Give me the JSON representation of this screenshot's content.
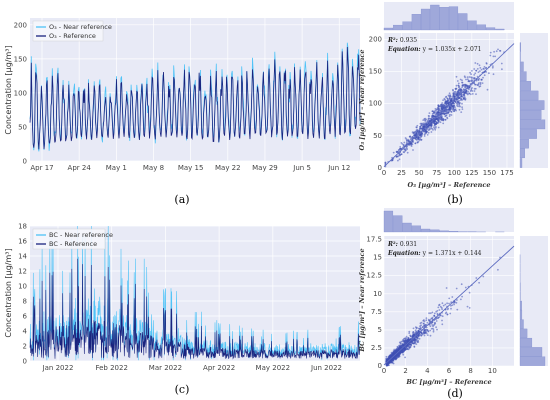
{
  "chart_data": [
    {
      "panel": "(a)",
      "type": "line",
      "ylabel": "Concentration [µg/m³]",
      "ylim": [
        0,
        210
      ],
      "yticks": [
        0,
        50,
        100,
        150,
        200
      ],
      "xticks": [
        "Apr 17",
        "Apr 24",
        "May 1",
        "May 8",
        "May 15",
        "May 22",
        "May 29",
        "Jun 5",
        "Jun 12"
      ],
      "series": [
        {
          "name": "O₃ - Near reference",
          "color": "#4fc3f7"
        },
        {
          "name": "O₃ - Reference",
          "color": "#1a237e"
        }
      ],
      "envelope_min": [
        5,
        25,
        30,
        28,
        30,
        25,
        30,
        30,
        28,
        30
      ],
      "envelope_max": [
        140,
        115,
        120,
        120,
        140,
        130,
        140,
        150,
        140,
        200
      ],
      "legend": "top-left"
    },
    {
      "panel": "(b)",
      "type": "scatter",
      "xlabel": "O₃ [µg/m³] – Reference",
      "ylabel": "O₃ [µg/m³] – Near reference",
      "xlim": [
        0,
        185
      ],
      "ylim": [
        0,
        210
      ],
      "xticks": [
        0,
        25,
        50,
        75,
        100,
        125,
        150,
        175
      ],
      "yticks": [
        0,
        50,
        100,
        150,
        200
      ],
      "r2_label": "R²:",
      "r2": "0.935",
      "equation_label": "Equation:",
      "equation": "y = 1.035x + 2.071",
      "slope": 1.035,
      "intercept": 2.071,
      "color": "#3f51b5"
    },
    {
      "panel": "(c)",
      "type": "line",
      "ylabel": "Concentration [µg/m³]",
      "ylim": [
        0,
        18
      ],
      "yticks": [
        0,
        2,
        4,
        6,
        8,
        10,
        12,
        14,
        16,
        18
      ],
      "xticks": [
        "Jan 2022",
        "Feb 2022",
        "Mar 2022",
        "Apr 2022",
        "May 2022",
        "Jun 2022"
      ],
      "series": [
        {
          "name": "BC - Near reference",
          "color": "#4fc3f7"
        },
        {
          "name": "BC - Reference",
          "color": "#1a237e"
        }
      ],
      "envelope_max": [
        10,
        13,
        16,
        12,
        8,
        5,
        4,
        3.5,
        3,
        3.5,
        4
      ],
      "legend": "top-left"
    },
    {
      "panel": "(d)",
      "type": "scatter",
      "xlabel": "BC [µg/m³] – Reference",
      "ylabel": "BC [µg/m³] – Near reference",
      "xlim": [
        0,
        12
      ],
      "ylim": [
        0,
        18
      ],
      "xticks": [
        0,
        2,
        4,
        6,
        8,
        10
      ],
      "yticks": [
        0,
        2.5,
        5,
        7.5,
        10,
        12.5,
        15,
        17.5
      ],
      "r2_label": "R²:",
      "r2": "0.931",
      "equation_label": "Equation:",
      "equation": "y = 1.371x + 0.144",
      "slope": 1.371,
      "intercept": 0.144,
      "color": "#3f51b5"
    }
  ],
  "labels": {
    "a": "(a)",
    "b": "(b)",
    "c": "(c)",
    "d": "(d)"
  }
}
